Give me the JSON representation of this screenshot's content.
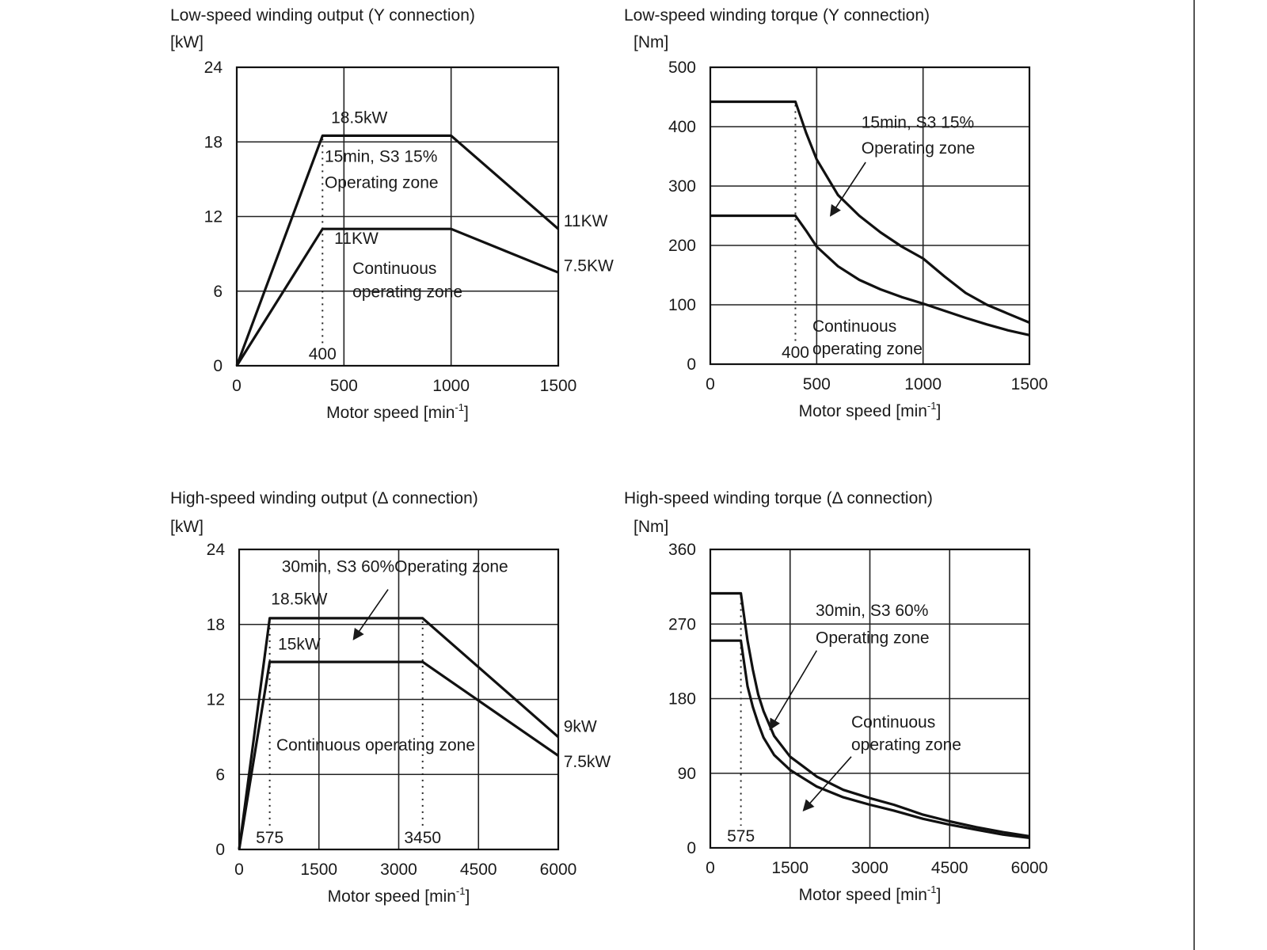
{
  "chart_data": [
    {
      "type": "line",
      "title": "Low-speed winding output (Y connection)",
      "ylabel": "[kW]",
      "xlabel": "Motor speed [min-1]",
      "xlabel_main": "Motor speed [min",
      "xlabel_sup": "-1",
      "xlabel_close": "]",
      "xlim": [
        0,
        1500
      ],
      "ylim": [
        0,
        24
      ],
      "xticks": [
        0,
        500,
        1000,
        1500
      ],
      "yticks": [
        0,
        6,
        12,
        18,
        24
      ],
      "grid": true,
      "series": [
        {
          "x": [
            0,
            400,
            1000,
            1500
          ],
          "y": [
            0,
            18.5,
            18.5,
            11
          ]
        },
        {
          "x": [
            0,
            400,
            1000,
            1500
          ],
          "y": [
            0,
            11,
            11,
            7.5
          ]
        }
      ],
      "vmarkers": [
        {
          "x": 400,
          "y_top": 18.5,
          "label": "400"
        }
      ],
      "annotations": [
        {
          "text": "18.5kW",
          "x": 440,
          "y": 19.5
        },
        {
          "text": "15min, S3 15%",
          "x": 410,
          "y": 16.4
        },
        {
          "text": "Operating zone",
          "x": 410,
          "y": 14.3
        },
        {
          "text": "11KW",
          "x": 1525,
          "y": 11.2
        },
        {
          "text": "11KW",
          "x": 455,
          "y": 9.8
        },
        {
          "text": "Continuous",
          "x": 540,
          "y": 7.4
        },
        {
          "text": "operating zone",
          "x": 540,
          "y": 5.5
        },
        {
          "text": "7.5KW",
          "x": 1525,
          "y": 7.6
        }
      ],
      "arrows": []
    },
    {
      "type": "line",
      "title": "Low-speed winding torque (Y connection)",
      "ylabel": "[Nm]",
      "xlabel": "Motor speed [min-1]",
      "xlabel_main": "Motor speed [min",
      "xlabel_sup": "-1",
      "xlabel_close": "]",
      "xlim": [
        0,
        1500
      ],
      "ylim": [
        0,
        500
      ],
      "xticks": [
        0,
        500,
        1000,
        1500
      ],
      "yticks": [
        0,
        100,
        200,
        300,
        400,
        500
      ],
      "grid": true,
      "series": [
        {
          "x": [
            0,
            400,
            450,
            500,
            600,
            700,
            800,
            900,
            1000,
            1100,
            1200,
            1300,
            1400,
            1500
          ],
          "y": [
            442,
            442,
            390,
            345,
            285,
            250,
            222,
            198,
            178,
            148,
            120,
            100,
            85,
            70
          ]
        },
        {
          "x": [
            0,
            400,
            450,
            500,
            600,
            700,
            800,
            900,
            1000,
            1100,
            1200,
            1300,
            1400,
            1500
          ],
          "y": [
            250,
            250,
            225,
            198,
            165,
            142,
            126,
            113,
            102,
            90,
            78,
            67,
            57,
            49
          ]
        }
      ],
      "vmarkers": [
        {
          "x": 400,
          "y_top": 442,
          "label": "400"
        }
      ],
      "annotations": [
        {
          "text": "15min, S3 15%",
          "x": 710,
          "y": 398
        },
        {
          "text": "Operating zone",
          "x": 710,
          "y": 355
        },
        {
          "text": "Continuous",
          "x": 480,
          "y": 55
        },
        {
          "text": "operating zone",
          "x": 480,
          "y": 17
        }
      ],
      "arrows": [
        {
          "from": [
            730,
            340
          ],
          "to": [
            565,
            250
          ]
        }
      ]
    },
    {
      "type": "line",
      "title": "High-speed winding output (Δ connection)",
      "ylabel": "[kW]",
      "xlabel": "Motor speed [min-1]",
      "xlabel_main": "Motor speed [min",
      "xlabel_sup": "-1",
      "xlabel_close": "]",
      "xlim": [
        0,
        6000
      ],
      "ylim": [
        0,
        24
      ],
      "xticks": [
        0,
        1500,
        3000,
        4500,
        6000
      ],
      "yticks": [
        0,
        6,
        12,
        18,
        24
      ],
      "grid": true,
      "series": [
        {
          "x": [
            0,
            575,
            3450,
            6000
          ],
          "y": [
            0,
            18.5,
            18.5,
            9
          ]
        },
        {
          "x": [
            0,
            575,
            3450,
            6000
          ],
          "y": [
            0,
            15,
            15,
            7.5
          ]
        }
      ],
      "vmarkers": [
        {
          "x": 575,
          "y_top": 18.5,
          "label": "575"
        },
        {
          "x": 3450,
          "y_top": 18.5,
          "label": "3450"
        }
      ],
      "annotations": [
        {
          "text": "30min, S3 60%Operating zone",
          "x": 800,
          "y": 22.2
        },
        {
          "text": "18.5kW",
          "x": 600,
          "y": 19.6
        },
        {
          "text": "15kW",
          "x": 730,
          "y": 16.0
        },
        {
          "text": "9kW",
          "x": 6100,
          "y": 9.4
        },
        {
          "text": "Continuous operating zone",
          "x": 700,
          "y": 7.9
        },
        {
          "text": "7.5kW",
          "x": 6100,
          "y": 6.6
        }
      ],
      "arrows": [
        {
          "from": [
            2800,
            20.8
          ],
          "to": [
            2150,
            16.8
          ]
        }
      ]
    },
    {
      "type": "line",
      "title": "High-speed winding torque (Δ connection)",
      "ylabel": "[Nm]",
      "xlabel": "Motor speed [min-1]",
      "xlabel_main": "Motor speed [min",
      "xlabel_sup": "-1",
      "xlabel_close": "]",
      "xlim": [
        0,
        6000
      ],
      "ylim": [
        0,
        360
      ],
      "xticks": [
        0,
        1500,
        3000,
        4500,
        6000
      ],
      "yticks": [
        0,
        90,
        180,
        270,
        360
      ],
      "grid": true,
      "series": [
        {
          "x": [
            0,
            575,
            700,
            800,
            900,
            1000,
            1200,
            1500,
            2000,
            2500,
            3000,
            3450,
            4000,
            4500,
            5000,
            5500,
            6000
          ],
          "y": [
            307,
            307,
            250,
            215,
            185,
            165,
            135,
            110,
            86,
            70,
            60,
            52,
            40,
            32,
            25,
            19,
            14
          ]
        },
        {
          "x": [
            0,
            575,
            700,
            800,
            900,
            1000,
            1200,
            1500,
            2000,
            2500,
            3000,
            3450,
            4000,
            4500,
            5000,
            5500,
            6000
          ],
          "y": [
            250,
            250,
            195,
            170,
            150,
            133,
            112,
            94,
            74,
            61,
            52,
            45,
            35,
            28,
            22,
            16,
            12
          ]
        }
      ],
      "vmarkers": [
        {
          "x": 575,
          "y_top": 307,
          "label": "575"
        }
      ],
      "annotations": [
        {
          "text": "30min, S3 60%",
          "x": 1980,
          "y": 280
        },
        {
          "text": "Operating zone",
          "x": 1980,
          "y": 247
        },
        {
          "text": "Continuous",
          "x": 2650,
          "y": 145
        },
        {
          "text": "operating zone",
          "x": 2650,
          "y": 118
        }
      ],
      "arrows": [
        {
          "from": [
            2000,
            238
          ],
          "to": [
            1120,
            143
          ]
        },
        {
          "from": [
            2650,
            110
          ],
          "to": [
            1750,
            45
          ]
        }
      ]
    }
  ]
}
